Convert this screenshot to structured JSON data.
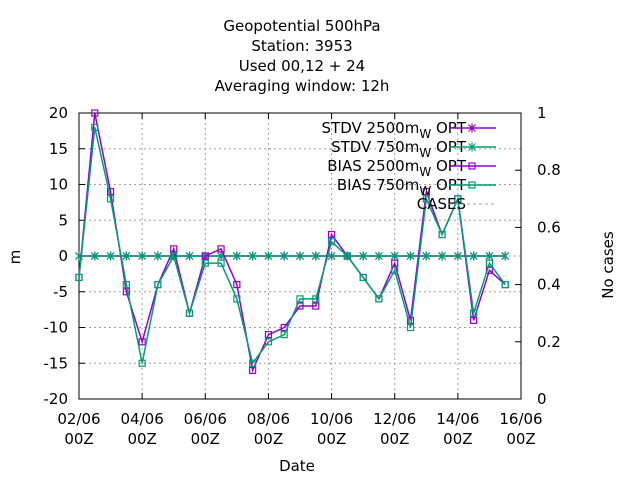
{
  "chart_data": {
    "type": "line",
    "title_lines": [
      "Geopotential 500hPa",
      "Station:      3953",
      "Used  00,12  + 24",
      "Averaging window: 12h"
    ],
    "xlabel": "Date",
    "ylabel": "m",
    "y2label": "No cases",
    "ylim": [
      -20,
      20
    ],
    "y2lim": [
      0,
      1
    ],
    "xlim": [
      0,
      28
    ],
    "x_ticks": [
      {
        "x": 0,
        "l1": "02/06",
        "l2": "00Z"
      },
      {
        "x": 4,
        "l1": "04/06",
        "l2": "00Z"
      },
      {
        "x": 8,
        "l1": "06/06",
        "l2": "00Z"
      },
      {
        "x": 12,
        "l1": "08/06",
        "l2": "00Z"
      },
      {
        "x": 16,
        "l1": "10/06",
        "l2": "00Z"
      },
      {
        "x": 20,
        "l1": "12/06",
        "l2": "00Z"
      },
      {
        "x": 24,
        "l1": "14/06",
        "l2": "00Z"
      },
      {
        "x": 28,
        "l1": "16/06",
        "l2": "00Z"
      }
    ],
    "y_ticks": [
      -20,
      -15,
      -10,
      -5,
      0,
      5,
      10,
      15,
      20
    ],
    "y2_ticks": [
      {
        "v": 0,
        "l": "0"
      },
      {
        "v": 0.2,
        "l": "0.2"
      },
      {
        "v": 0.4,
        "l": "0.4"
      },
      {
        "v": 0.6,
        "l": "0.6"
      },
      {
        "v": 0.8,
        "l": "0.8"
      },
      {
        "v": 1,
        "l": "1"
      }
    ],
    "x": [
      0,
      1,
      2,
      3,
      4,
      5,
      6,
      7,
      8,
      9,
      10,
      11,
      12,
      13,
      14,
      15,
      16,
      17,
      18,
      19,
      20,
      21,
      22,
      23,
      24,
      25,
      26,
      27
    ],
    "legend": [
      {
        "label": "STDV 2500m",
        "sub": "W",
        "suffix": " OPT"
      },
      {
        "label": "STDV 750m",
        "sub": "W",
        "suffix": " OPT"
      },
      {
        "label": "BIAS 2500m",
        "sub": "W",
        "suffix": " OPT"
      },
      {
        "label": "BIAS 750m",
        "sub": "W",
        "suffix": " OPT"
      },
      {
        "label": "CASES",
        "sub": "",
        "suffix": ""
      }
    ],
    "series": [
      {
        "key": "stdv2500",
        "color": "#9400d3",
        "marker": "star",
        "values": [
          0,
          0,
          0,
          0,
          0,
          0,
          0,
          0,
          0,
          0,
          0,
          0,
          0,
          0,
          0,
          0,
          0,
          0,
          0,
          0,
          0,
          0,
          0,
          0,
          0,
          0,
          0,
          0
        ]
      },
      {
        "key": "stdv750",
        "color": "#009e73",
        "marker": "star",
        "values": [
          0,
          0,
          0,
          0,
          0,
          0,
          0,
          0,
          0,
          0,
          0,
          0,
          0,
          0,
          0,
          0,
          0,
          0,
          0,
          0,
          0,
          0,
          0,
          0,
          0,
          0,
          0,
          0
        ]
      },
      {
        "key": "bias2500",
        "color": "#9400d3",
        "marker": "square",
        "values": [
          -3,
          20,
          9,
          -5,
          -12,
          -4,
          1,
          -8,
          0,
          1,
          -4,
          -16,
          -11,
          -10,
          -7,
          -7,
          3,
          0,
          -3,
          -6,
          -1,
          -9,
          9,
          3,
          8,
          -9,
          -2,
          -4
        ]
      },
      {
        "key": "bias750",
        "color": "#009e73",
        "marker": "square",
        "values": [
          -3,
          18,
          8,
          -4,
          -15,
          -4,
          0,
          -8,
          -1,
          -1,
          -6,
          -15,
          -12,
          -11,
          -6,
          -6,
          2,
          0,
          -3,
          -6,
          -2,
          -10,
          8,
          3,
          8,
          -8,
          -1,
          -4
        ]
      }
    ]
  }
}
